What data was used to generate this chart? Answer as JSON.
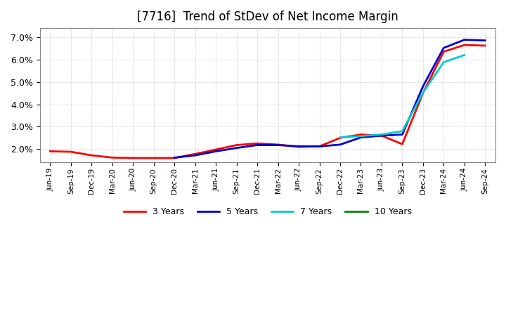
{
  "title": "[7716]  Trend of StDev of Net Income Margin",
  "title_fontsize": 12,
  "background_color": "#ffffff",
  "plot_bg_color": "#ffffff",
  "grid_color": "#aaaaaa",
  "x_labels": [
    "Jun-19",
    "Sep-19",
    "Dec-19",
    "Mar-20",
    "Jun-20",
    "Sep-20",
    "Dec-20",
    "Mar-21",
    "Jun-21",
    "Sep-21",
    "Dec-21",
    "Mar-22",
    "Jun-22",
    "Sep-22",
    "Dec-22",
    "Mar-23",
    "Jun-23",
    "Sep-23",
    "Dec-23",
    "Mar-24",
    "Jun-24",
    "Sep-24"
  ],
  "series": {
    "3 Years": {
      "color": "#ff0000",
      "values": [
        1.9,
        1.88,
        1.72,
        1.62,
        1.6,
        1.6,
        1.6,
        1.78,
        1.98,
        2.18,
        2.25,
        2.2,
        2.1,
        2.12,
        2.5,
        2.65,
        2.6,
        2.22,
        4.5,
        6.35,
        6.65,
        6.62
      ]
    },
    "5 Years": {
      "color": "#0000cc",
      "values": [
        null,
        null,
        null,
        null,
        null,
        null,
        1.62,
        1.72,
        1.9,
        2.05,
        2.18,
        2.18,
        2.12,
        2.12,
        2.2,
        2.52,
        2.6,
        2.65,
        4.8,
        6.52,
        6.88,
        6.85
      ]
    },
    "7 Years": {
      "color": "#00cccc",
      "values": [
        null,
        null,
        null,
        null,
        null,
        null,
        null,
        null,
        null,
        null,
        null,
        null,
        null,
        null,
        2.52,
        2.58,
        2.65,
        2.8,
        4.52,
        5.88,
        6.2,
        null
      ]
    },
    "10 Years": {
      "color": "#008800",
      "values": [
        null,
        null,
        null,
        null,
        null,
        null,
        null,
        null,
        null,
        null,
        null,
        null,
        null,
        null,
        null,
        null,
        null,
        null,
        null,
        null,
        null,
        null
      ]
    }
  },
  "ylim": [
    1.4,
    7.4
  ],
  "yticks": [
    2.0,
    3.0,
    4.0,
    5.0,
    6.0,
    7.0
  ],
  "legend_ncol": 4,
  "line_width": 2.0
}
